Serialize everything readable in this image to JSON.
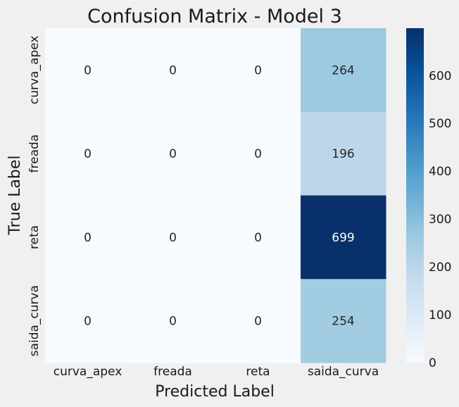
{
  "chart_data": {
    "type": "heatmap",
    "title": "Confusion Matrix - Model 3",
    "xlabel": "Predicted Label",
    "ylabel": "True Label",
    "x_categories": [
      "curva_apex",
      "freada",
      "reta",
      "saida_curva"
    ],
    "y_categories": [
      "curva_apex",
      "freada",
      "reta",
      "saida_curva"
    ],
    "values": [
      [
        0,
        0,
        0,
        264
      ],
      [
        0,
        0,
        0,
        196
      ],
      [
        0,
        0,
        0,
        699
      ],
      [
        0,
        0,
        0,
        254
      ]
    ],
    "colormap": "Blues",
    "colorbar": {
      "vmin": 0,
      "vmax": 699,
      "ticks": [
        0,
        100,
        200,
        300,
        400,
        500,
        600
      ]
    },
    "annotations": true,
    "grid": false
  }
}
